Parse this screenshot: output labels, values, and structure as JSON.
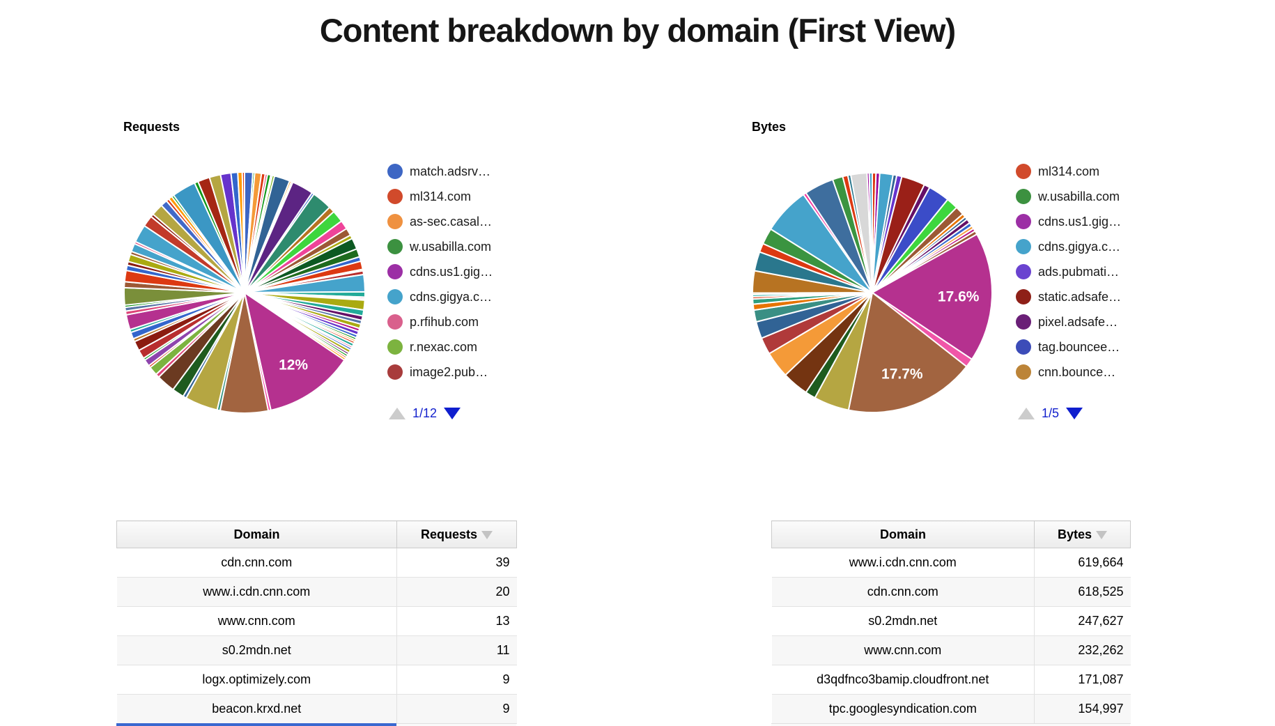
{
  "page": {
    "title": "Content breakdown by domain (First View)"
  },
  "pagination_colors": {
    "enabled_arrow": "#0f1ece",
    "disabled_arrow": "#cccccc",
    "text": "#1321cd"
  },
  "chart_data": [
    {
      "type": "pie",
      "id": "requests",
      "title": "Requests",
      "legend_position": "right",
      "pagination": "1/12",
      "legend": [
        {
          "label": "match.adsrv…",
          "color": "#3d66c4"
        },
        {
          "label": "ml314.com",
          "color": "#d14a2b"
        },
        {
          "label": "as-sec.casal…",
          "color": "#ef9140"
        },
        {
          "label": "w.usabilla.com",
          "color": "#3c9140"
        },
        {
          "label": "cdns.us1.gig…",
          "color": "#9c2fa5"
        },
        {
          "label": "cdns.gigya.c…",
          "color": "#45a3cb"
        },
        {
          "label": "p.rfihub.com",
          "color": "#d9608c"
        },
        {
          "label": "r.nexac.com",
          "color": "#7cb33f"
        },
        {
          "label": "image2.pub…",
          "color": "#a83c3c"
        }
      ],
      "labeled_slices": [
        {
          "label": "12%",
          "value_pct": 12
        }
      ],
      "slices": [
        [
          1.1,
          "#3d66c4"
        ],
        [
          0.25,
          "#109618"
        ],
        [
          0.9,
          "#f49a38"
        ],
        [
          0.5,
          "#dc3912"
        ],
        [
          0.3,
          "#dd4477"
        ],
        [
          0.45,
          "#109618"
        ],
        [
          0.2,
          "#3366cc"
        ],
        [
          0.3,
          "#66aa00"
        ],
        [
          2.1,
          "#316395"
        ],
        [
          0.25,
          "#ff9900"
        ],
        [
          0.2,
          "#dd4477"
        ],
        [
          2.9,
          "#5c2483"
        ],
        [
          0.3,
          "#3366cc"
        ],
        [
          2.7,
          "#2e8b6e"
        ],
        [
          0.8,
          "#b77322"
        ],
        [
          1.6,
          "#3ed63e"
        ],
        [
          1.2,
          "#ee4499"
        ],
        [
          1.0,
          "#9c5935"
        ],
        [
          0.5,
          "#aaaa11"
        ],
        [
          1.5,
          "#0c5922"
        ],
        [
          1.1,
          "#1e6b1e"
        ],
        [
          0.6,
          "#3366cc"
        ],
        [
          1.1,
          "#dc3912"
        ],
        [
          0.2,
          "#ff9900"
        ],
        [
          0.5,
          "#b82e2e"
        ],
        [
          2.3,
          "#45a3cb"
        ],
        [
          0.7,
          "#22aa99"
        ],
        [
          0.2,
          "#b91383"
        ],
        [
          0.2,
          "#dd4477"
        ],
        [
          1.3,
          "#aaaa11"
        ],
        [
          0.8,
          "#22aa99"
        ],
        [
          0.6,
          "#651067"
        ],
        [
          0.5,
          "#5574a6"
        ],
        [
          0.6,
          "#aaaa11"
        ],
        [
          0.4,
          "#b91383"
        ],
        [
          0.5,
          "#6633cc"
        ],
        [
          0.4,
          "#3366cc"
        ],
        [
          0.3,
          "#109618"
        ],
        [
          0.25,
          "#ff9900"
        ],
        [
          0.3,
          "#dc3912"
        ],
        [
          0.4,
          "#22aa99"
        ],
        [
          0.25,
          "#dd4477"
        ],
        [
          0.3,
          "#3366cc"
        ],
        [
          0.4,
          "#aaaa11"
        ],
        [
          0.3,
          "#651067"
        ],
        [
          0.3,
          "#109618"
        ],
        [
          0.25,
          "#dc3912"
        ],
        [
          0.3,
          "#ff9900"
        ],
        [
          12.0,
          "#b5318f",
          "12%"
        ],
        [
          0.35,
          "#f4359e"
        ],
        [
          6.4,
          "#a26440"
        ],
        [
          0.4,
          "#31917e"
        ],
        [
          4.4,
          "#b5a642"
        ],
        [
          0.45,
          "#316395"
        ],
        [
          1.6,
          "#1e5b1e"
        ],
        [
          2.5,
          "#6b3a21"
        ],
        [
          0.5,
          "#dd4477"
        ],
        [
          1.2,
          "#7cb33f"
        ],
        [
          0.3,
          "#dc3912"
        ],
        [
          0.9,
          "#8e44ad"
        ],
        [
          0.3,
          "#109618"
        ],
        [
          1.2,
          "#b82e2e"
        ],
        [
          1.3,
          "#8b1c10"
        ],
        [
          0.4,
          "#b77322"
        ],
        [
          0.9,
          "#3366cc"
        ],
        [
          0.4,
          "#22aa99"
        ],
        [
          2.0,
          "#b5318f"
        ],
        [
          0.5,
          "#dd4477"
        ],
        [
          0.5,
          "#5574a6"
        ],
        [
          0.3,
          "#109618"
        ],
        [
          2.3,
          "#7a8f3a"
        ],
        [
          0.8,
          "#9c5935"
        ],
        [
          1.5,
          "#dc3912"
        ],
        [
          0.7,
          "#3366cc"
        ],
        [
          0.5,
          "#8b1c10"
        ],
        [
          1.0,
          "#aaaa11"
        ],
        [
          0.4,
          "#9c5935"
        ],
        [
          1.1,
          "#45a3cb"
        ],
        [
          0.3,
          "#dd4477"
        ],
        [
          2.4,
          "#45a3cb"
        ],
        [
          1.5,
          "#c23a2a"
        ],
        [
          0.4,
          "#8b1c10"
        ],
        [
          1.6,
          "#b5a642"
        ],
        [
          0.9,
          "#4169c8"
        ],
        [
          0.4,
          "#dc3912"
        ],
        [
          0.5,
          "#ff9900"
        ],
        [
          0.3,
          "#109618"
        ],
        [
          3.2,
          "#3b97c4"
        ],
        [
          0.5,
          "#109618"
        ],
        [
          1.6,
          "#a52714"
        ],
        [
          1.5,
          "#b5a642"
        ],
        [
          1.4,
          "#6633cc"
        ],
        [
          0.9,
          "#3366cc"
        ],
        [
          0.6,
          "#ff9900"
        ],
        [
          0.3,
          "#dc3912"
        ]
      ]
    },
    {
      "type": "pie",
      "id": "bytes",
      "title": "Bytes",
      "legend_position": "right",
      "pagination": "1/5",
      "legend": [
        {
          "label": "ml314.com",
          "color": "#d14a2b"
        },
        {
          "label": "w.usabilla.com",
          "color": "#3c9140"
        },
        {
          "label": "cdns.us1.gig…",
          "color": "#9c2fa5"
        },
        {
          "label": "cdns.gigya.c…",
          "color": "#45a3cb"
        },
        {
          "label": "ads.pubmati…",
          "color": "#6a43d0"
        },
        {
          "label": "static.adsafe…",
          "color": "#8e2018"
        },
        {
          "label": "pixel.adsafe…",
          "color": "#6a1f77"
        },
        {
          "label": "tag.bouncee…",
          "color": "#3c4cb8"
        },
        {
          "label": "cnn.bounce…",
          "color": "#bc8438"
        }
      ],
      "labeled_slices": [
        {
          "label": "17.6%",
          "value_pct": 17.6
        },
        {
          "label": "17.7%",
          "value_pct": 17.7
        }
      ],
      "slices": [
        [
          0.5,
          "#dc3912"
        ],
        [
          0.5,
          "#990099"
        ],
        [
          1.8,
          "#45a3cb"
        ],
        [
          0.5,
          "#316395"
        ],
        [
          0.7,
          "#6633cc"
        ],
        [
          3.2,
          "#9a2018"
        ],
        [
          0.8,
          "#651067"
        ],
        [
          2.9,
          "#3b4cc8"
        ],
        [
          1.6,
          "#3ed63e"
        ],
        [
          1.2,
          "#9c5935"
        ],
        [
          0.5,
          "#e67300"
        ],
        [
          0.4,
          "#316395"
        ],
        [
          0.6,
          "#651067"
        ],
        [
          0.5,
          "#3366cc"
        ],
        [
          0.4,
          "#f49a38"
        ],
        [
          0.4,
          "#b91383"
        ],
        [
          0.5,
          "#9c5935"
        ],
        [
          17.6,
          "#b5318f",
          "17.6%"
        ],
        [
          1.2,
          "#f056a8"
        ],
        [
          17.7,
          "#a26440",
          "17.7%"
        ],
        [
          4.8,
          "#b5a642"
        ],
        [
          1.4,
          "#1e5b1e"
        ],
        [
          3.6,
          "#743411"
        ],
        [
          3.6,
          "#f49a38"
        ],
        [
          2.3,
          "#b03a3a"
        ],
        [
          2.3,
          "#316395"
        ],
        [
          1.6,
          "#3a8f84"
        ],
        [
          0.8,
          "#e67300"
        ],
        [
          0.7,
          "#2e9e7e"
        ],
        [
          0.3,
          "#dc3912"
        ],
        [
          0.3,
          "#22aa99"
        ],
        [
          0.2,
          "#ff9900"
        ],
        [
          3.0,
          "#b77322"
        ],
        [
          2.6,
          "#2a778d"
        ],
        [
          1.2,
          "#dc3912"
        ],
        [
          2.2,
          "#3b9440"
        ],
        [
          6.4,
          "#45a3cb"
        ],
        [
          0.4,
          "#f4359e"
        ],
        [
          4.0,
          "#3e6e9e"
        ],
        [
          1.4,
          "#3b9440"
        ],
        [
          0.7,
          "#dc3912"
        ],
        [
          0.4,
          "#2a778d"
        ],
        [
          2.2,
          "#d8d8d8"
        ],
        [
          0.3,
          "#990099"
        ],
        [
          0.4,
          "#45a3cb"
        ]
      ]
    },
    {
      "type": "table",
      "id": "requests-table",
      "columns": [
        "Domain",
        "Requests"
      ],
      "sorted_by": "Requests",
      "sort_direction": "desc",
      "rows": [
        [
          "cdn.cnn.com",
          "39"
        ],
        [
          "www.i.cdn.cnn.com",
          "20"
        ],
        [
          "www.cnn.com",
          "13"
        ],
        [
          "s0.2mdn.net",
          "11"
        ],
        [
          "logx.optimizely.com",
          "9"
        ],
        [
          "beacon.krxd.net",
          "9"
        ]
      ]
    },
    {
      "type": "table",
      "id": "bytes-table",
      "columns": [
        "Domain",
        "Bytes"
      ],
      "sorted_by": "Bytes",
      "sort_direction": "desc",
      "rows": [
        [
          "www.i.cdn.cnn.com",
          "619,664"
        ],
        [
          "cdn.cnn.com",
          "618,525"
        ],
        [
          "s0.2mdn.net",
          "247,627"
        ],
        [
          "www.cnn.com",
          "232,262"
        ],
        [
          "d3qdfnco3bamip.cloudfront.net",
          "171,087"
        ],
        [
          "tpc.googlesyndication.com",
          "154,997"
        ]
      ]
    }
  ]
}
